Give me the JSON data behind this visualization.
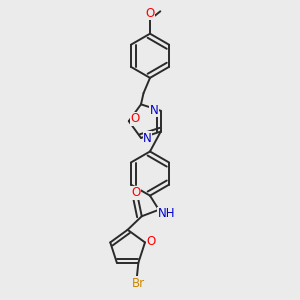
{
  "background_color": "#ebebeb",
  "bond_color": "#2a2a2a",
  "bond_width": 1.4,
  "dbo": 0.018,
  "figsize": [
    3.0,
    3.0
  ],
  "dpi": 100,
  "colors": {
    "O": "#ff0000",
    "N": "#0000cc",
    "NH": "#0000cc",
    "Br": "#cc8800",
    "C": "#2a2a2a"
  }
}
